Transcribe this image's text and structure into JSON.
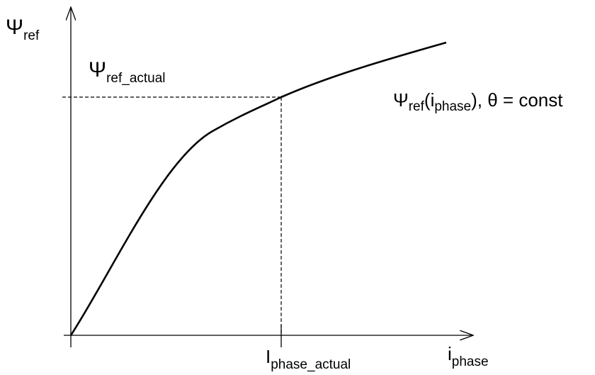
{
  "y_axis": {
    "symbol": "Ψ",
    "sub": "ref"
  },
  "x_axis": {
    "symbol": "i",
    "sub": "phase"
  },
  "operating_flux": {
    "symbol": "Ψ",
    "sub": "ref_actual"
  },
  "operating_current": {
    "symbol": "I",
    "sub": "phase_actual"
  },
  "curve_label": {
    "symbol": "Ψ",
    "sub": "ref",
    "open": "(i",
    "arg_sub": "phase",
    "rest": "), θ = const"
  }
}
